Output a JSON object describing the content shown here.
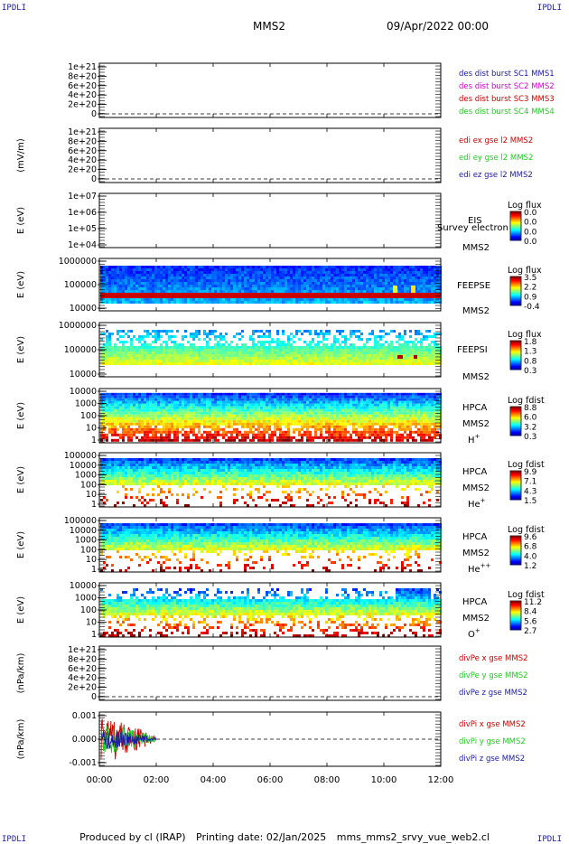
{
  "header": {
    "corner_left_top": "IPDLI",
    "corner_right_top": "IPDLI",
    "corner_left_bottom": "IPDLI",
    "corner_right_bottom": "IPDLI",
    "spacecraft": "MMS2",
    "date": "09/Apr/2022 00:00"
  },
  "footer": {
    "produced": "Produced by cl (IRAP)",
    "printing": "Printing date: 02/Jan/2025",
    "file": "mms_mms2_srvy_vue_web2.cl"
  },
  "colors": {
    "red": "#cc0000",
    "magenta": "#d400d4",
    "green": "#22cc22",
    "blue": "#1a1aa8",
    "ion_band": "#c80000"
  },
  "chart_data": [
    {
      "type": "line",
      "panel": "des-dist-burst",
      "ylabel": "",
      "yticks": [
        "1e+21",
        "8e+20",
        "6e+20",
        "4e+20",
        "2e+20",
        "0"
      ],
      "ylim": [
        0,
        1e+21
      ],
      "xlim": [
        "00:00",
        "12:00"
      ],
      "series": [
        {
          "name": "des dist burst SC1 MMS1",
          "color": "blue",
          "values": []
        },
        {
          "name": "des dist burst SC2 MMS2",
          "color": "magenta",
          "values": []
        },
        {
          "name": "des dist burst SC3 MMS3",
          "color": "red",
          "values": []
        },
        {
          "name": "des dist burst SC4 MMS4",
          "color": "green",
          "values": []
        }
      ],
      "zero_line": "dashed"
    },
    {
      "type": "line",
      "panel": "edi-e-gse",
      "ylabel": "(mV/m)",
      "yticks": [
        "1e+21",
        "8e+20",
        "6e+20",
        "4e+20",
        "2e+20",
        "0"
      ],
      "ylim": [
        0,
        1e+21
      ],
      "series": [
        {
          "name": "edi ex gse l2 MMS2",
          "color": "red",
          "values": []
        },
        {
          "name": "edi ey gse l2 MMS2",
          "color": "green",
          "values": []
        },
        {
          "name": "edi ez gse l2 MMS2",
          "color": "blue",
          "values": []
        }
      ],
      "zero_line": "dashed"
    },
    {
      "type": "heatmap",
      "panel": "eis",
      "ylabel": "E (eV)",
      "yticks": [
        "1e+07",
        "1e+06",
        "1e+05",
        "1e+04"
      ],
      "instrument": "EIS",
      "spacecraft": "MMS2",
      "note": "Survey electron to",
      "colorbar": {
        "title": "Log flux",
        "ticks": [
          "0.0",
          "0.0",
          "0.0",
          "0.0"
        ]
      },
      "fill": "empty"
    },
    {
      "type": "heatmap",
      "panel": "feeps-electrons",
      "ylabel": "E (eV)",
      "yticks": [
        "1000000",
        "100000",
        "10000"
      ],
      "instrument": "FEEPSE",
      "spacecraft": "MMS2",
      "colorbar": {
        "title": "Log flux",
        "ticks": [
          "3.5",
          "2.2",
          "0.9",
          "-0.4"
        ]
      },
      "fill": "blue-high-red-low"
    },
    {
      "type": "heatmap",
      "panel": "feeps-ions",
      "ylabel": "E (eV)",
      "yticks": [
        "1000000",
        "100000",
        "10000"
      ],
      "instrument": "FEEPSI",
      "spacecraft": "MMS2",
      "colorbar": {
        "title": "Log flux",
        "ticks": [
          "1.8",
          "1.3",
          "0.8",
          "0.3"
        ]
      },
      "fill": "green-yellow-band"
    },
    {
      "type": "heatmap",
      "panel": "hpca-h",
      "ylabel": "E (eV)",
      "yticks": [
        "10000",
        "1000",
        "100",
        "10",
        "1"
      ],
      "instrument": "HPCA",
      "spacecraft": "MMS2",
      "species": "H",
      "species_sup": "+",
      "colorbar": {
        "title": "Log fdist",
        "ticks": [
          "8.8",
          "6.0",
          "3.2",
          "0.3"
        ]
      },
      "fill": "dense"
    },
    {
      "type": "heatmap",
      "panel": "hpca-he",
      "ylabel": "E (eV)",
      "yticks": [
        "100000",
        "10000",
        "1000",
        "100",
        "10",
        "1"
      ],
      "instrument": "HPCA",
      "spacecraft": "MMS2",
      "species": "He",
      "species_sup": "+",
      "colorbar": {
        "title": "Log fdist",
        "ticks": [
          "9.9",
          "7.1",
          "4.3",
          "1.5"
        ]
      },
      "fill": "medium"
    },
    {
      "type": "heatmap",
      "panel": "hpca-he2",
      "ylabel": "E (eV)",
      "yticks": [
        "100000",
        "10000",
        "1000",
        "100",
        "10",
        "1"
      ],
      "instrument": "HPCA",
      "spacecraft": "MMS2",
      "species": "He",
      "species_sup": "++",
      "colorbar": {
        "title": "Log fdist",
        "ticks": [
          "9.6",
          "6.8",
          "4.0",
          "1.2"
        ]
      },
      "fill": "medium"
    },
    {
      "type": "heatmap",
      "panel": "hpca-o",
      "ylabel": "E (eV)",
      "yticks": [
        "10000",
        "1000",
        "100",
        "10",
        "1"
      ],
      "instrument": "HPCA",
      "spacecraft": "MMS2",
      "species": "O",
      "species_sup": "+",
      "colorbar": {
        "title": "Log fdist",
        "ticks": [
          "11.2",
          "8.4",
          "5.6",
          "2.7"
        ]
      },
      "fill": "sparse"
    },
    {
      "type": "line",
      "panel": "divpe",
      "ylabel": "(nPa/km)",
      "yticks": [
        "1e+21",
        "8e+20",
        "6e+20",
        "4e+20",
        "2e+20",
        "0"
      ],
      "ylim": [
        0,
        1e+21
      ],
      "series": [
        {
          "name": "divPe x gse MMS2",
          "color": "red",
          "values": []
        },
        {
          "name": "divPe y gse MMS2",
          "color": "green",
          "values": []
        },
        {
          "name": "divPe z gse MMS2",
          "color": "blue",
          "values": []
        }
      ],
      "zero_line": "dashed"
    },
    {
      "type": "line",
      "panel": "divpi",
      "ylabel": "(nPa/km)",
      "yticks": [
        "0.001",
        "0.000",
        "-0.001"
      ],
      "ylim": [
        -0.0015,
        0.0015
      ],
      "series": [
        {
          "name": "divPi x gse MMS2",
          "color": "red",
          "amplitude": 0.0013
        },
        {
          "name": "divPi y gse MMS2",
          "color": "green",
          "amplitude": 0.0009
        },
        {
          "name": "divPi z gse MMS2",
          "color": "blue",
          "amplitude": 0.0006
        }
      ],
      "data_extent": [
        "00:00",
        "02:00"
      ],
      "zero_line": "dashed"
    }
  ],
  "xaxis": {
    "ticks": [
      "00:00",
      "02:00",
      "04:00",
      "06:00",
      "08:00",
      "10:00",
      "12:00"
    ]
  }
}
